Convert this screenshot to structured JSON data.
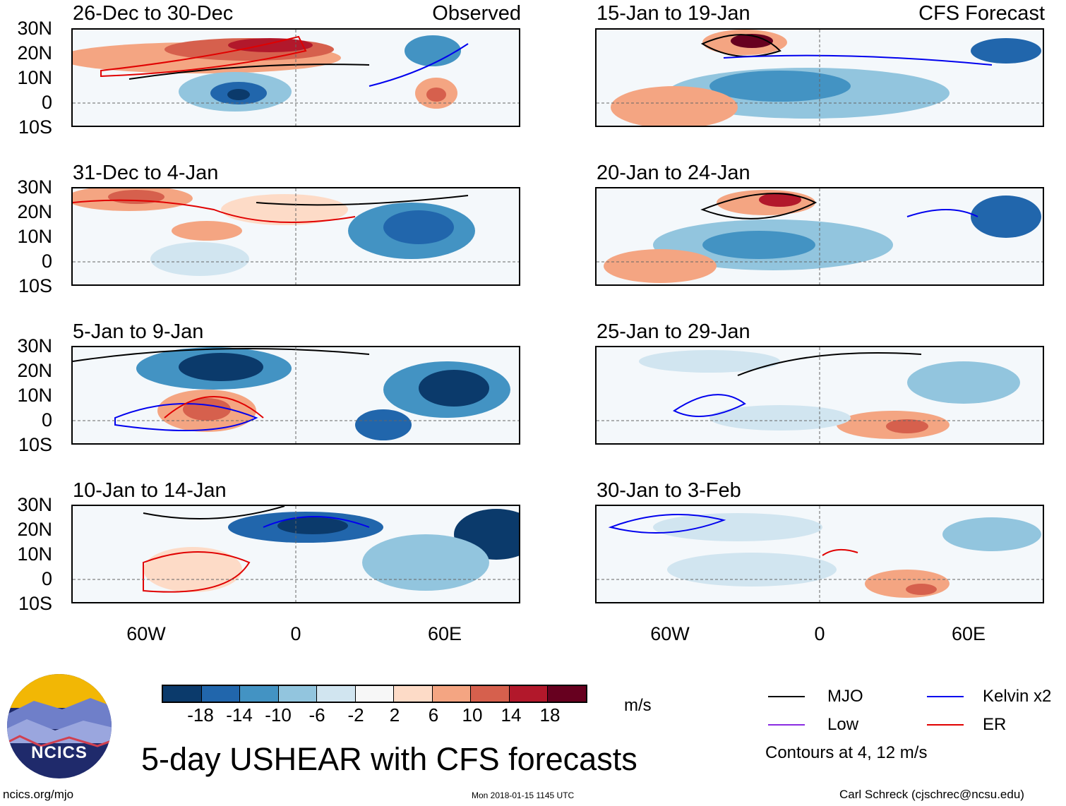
{
  "panels": [
    {
      "title": "26-Dec to 30-Dec",
      "tag": "Observed"
    },
    {
      "title": "31-Dec to 4-Jan",
      "tag": ""
    },
    {
      "title": "5-Jan to 9-Jan",
      "tag": ""
    },
    {
      "title": "10-Jan to 14-Jan",
      "tag": ""
    },
    {
      "title": "15-Jan to 19-Jan",
      "tag": "CFS Forecast"
    },
    {
      "title": "20-Jan to 24-Jan",
      "tag": ""
    },
    {
      "title": "25-Jan to 29-Jan",
      "tag": ""
    },
    {
      "title": "30-Jan to 3-Feb",
      "tag": ""
    }
  ],
  "lat_labels": [
    "30N",
    "20N",
    "10N",
    "0",
    "10S"
  ],
  "lon_labels": [
    "60W",
    "0",
    "60E"
  ],
  "colorbar": {
    "unit": "m/s",
    "labels": [
      "-18",
      "-14",
      "-10",
      "-6",
      "-2",
      "2",
      "6",
      "10",
      "14",
      "18"
    ],
    "colors": [
      "#0b3a6b",
      "#2166ac",
      "#4393c3",
      "#92c5de",
      "#d1e5f0",
      "#f7f7f7",
      "#fddbc7",
      "#f4a582",
      "#d6604d",
      "#b2182b",
      "#67001f"
    ]
  },
  "legend": {
    "items": [
      {
        "label": "MJO",
        "color": "#000000"
      },
      {
        "label": "Kelvin x2",
        "color": "#0000ee"
      },
      {
        "label": "Low",
        "color": "#8a2be2"
      },
      {
        "label": "ER",
        "color": "#e00000"
      }
    ],
    "note": "Contours at 4, 12 m/s"
  },
  "main_title": "5-day USHEAR with CFS forecasts",
  "logo_text": "NCICS",
  "footer": {
    "left": "ncics.org/mjo",
    "center": "Mon 2018-01-15 1145 UTC",
    "right": "Carl Schreck (cjschrec@ncsu.edu)"
  }
}
